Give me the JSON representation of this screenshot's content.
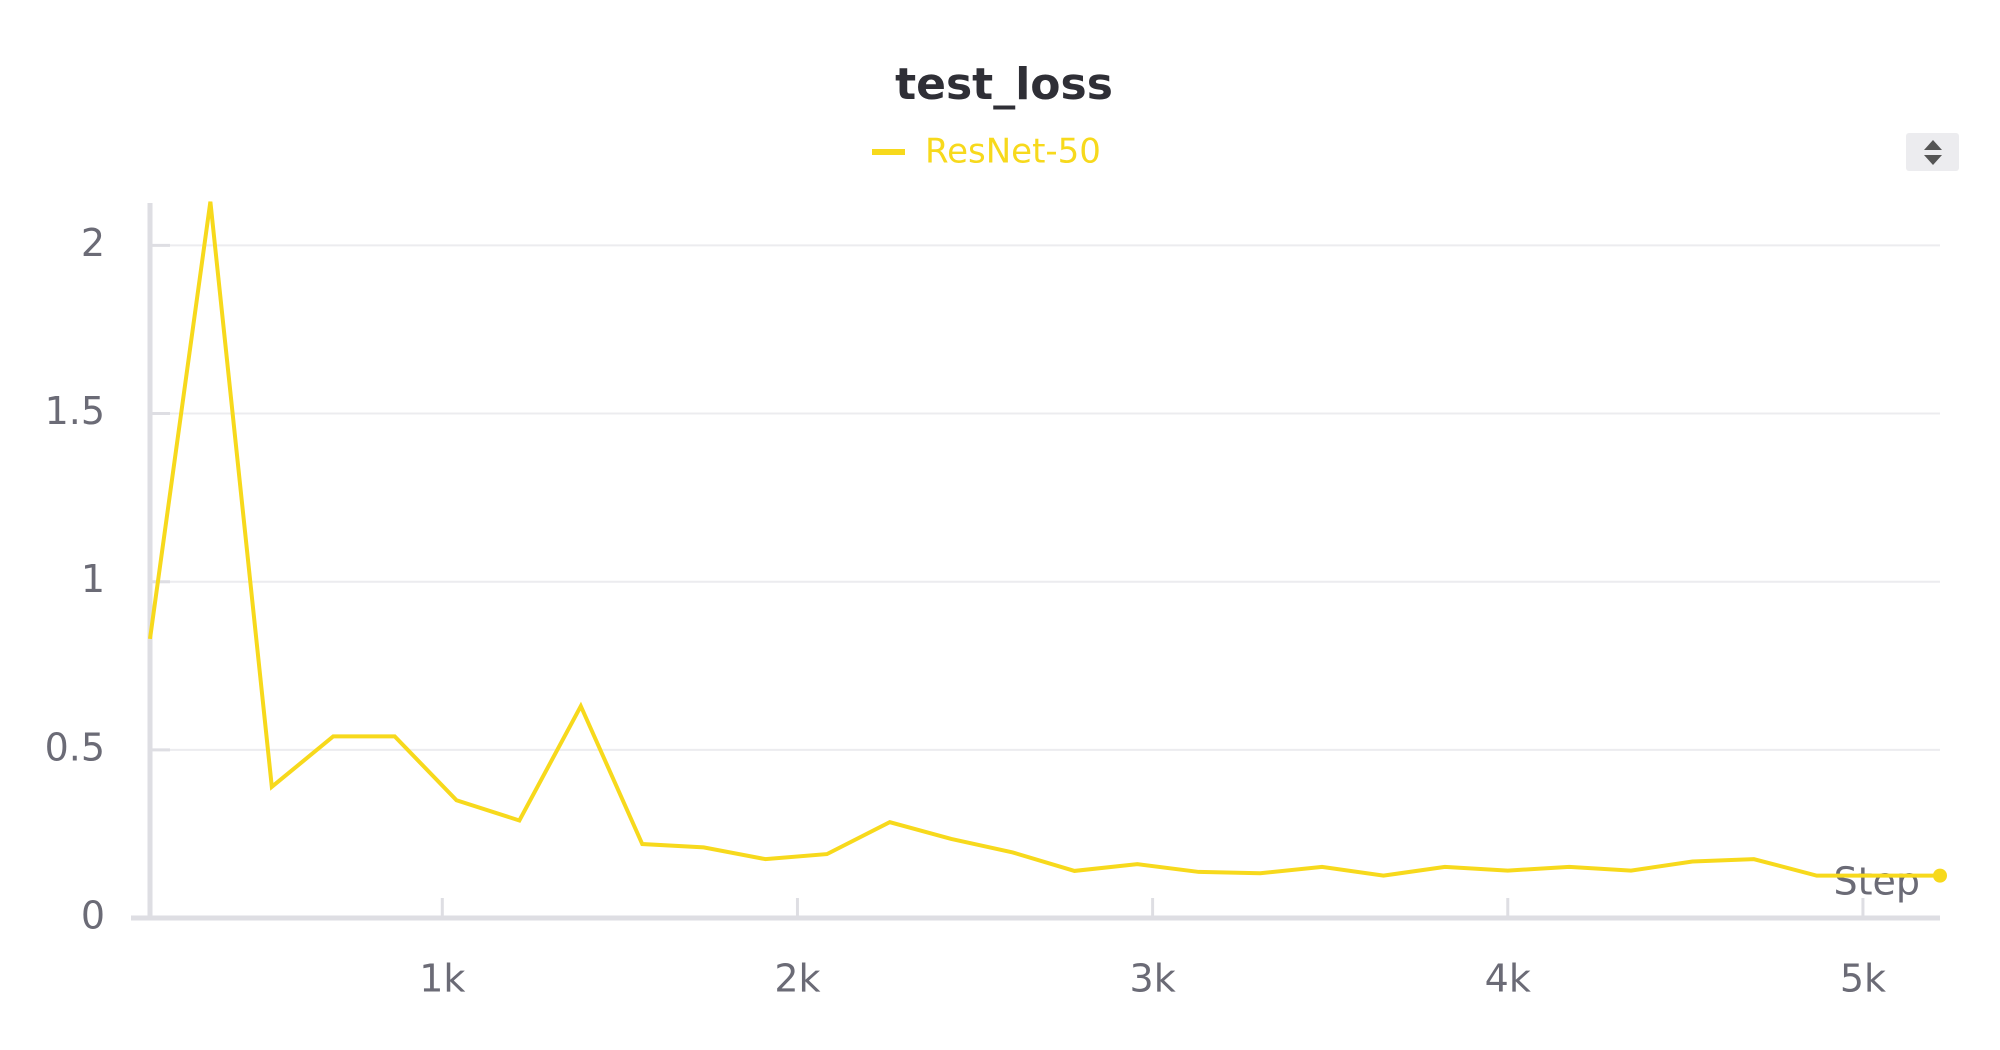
{
  "chart_data": {
    "type": "line",
    "title": "test_loss",
    "x_label": "Step",
    "x": [
      177,
      347,
      520,
      693,
      866,
      1040,
      1217,
      1390,
      1563,
      1736,
      1910,
      2083,
      2260,
      2433,
      2606,
      2780,
      2957,
      3130,
      3303,
      3477,
      3650,
      3823,
      4000,
      4173,
      4347,
      4520,
      4693,
      4870,
      5043,
      5217
    ],
    "series": [
      {
        "name": "ResNet-50",
        "color": "#f7d91c",
        "values": [
          0.83,
          2.13,
          0.39,
          0.54,
          0.54,
          0.35,
          0.29,
          0.63,
          0.22,
          0.21,
          0.175,
          0.19,
          0.285,
          0.235,
          0.195,
          0.14,
          0.16,
          0.137,
          0.133,
          0.152,
          0.126,
          0.152,
          0.141,
          0.152,
          0.141,
          0.168,
          0.175,
          0.126,
          0.126,
          0.126
        ]
      }
    ],
    "xlim": [
      177,
      5217
    ],
    "ylim": [
      0,
      2.126
    ],
    "xticks": [
      {
        "value": 1000,
        "label": "1k"
      },
      {
        "value": 2000,
        "label": "2k"
      },
      {
        "value": 3000,
        "label": "3k"
      },
      {
        "value": 4000,
        "label": "4k"
      },
      {
        "value": 5000,
        "label": "5k"
      }
    ],
    "yticks": [
      0,
      0.5,
      1,
      1.5,
      2
    ],
    "grid": true
  }
}
